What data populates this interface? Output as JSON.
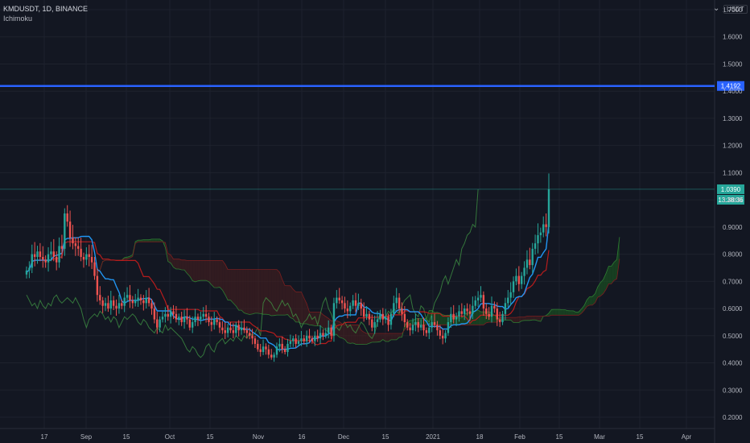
{
  "header": {
    "symbol_line": "KMDUSDT, 1D, BINANCE",
    "indicator": "Ichimoku"
  },
  "price_axis": {
    "unit_label": "USDT",
    "chevron_icon": "chevron-down-icon"
  },
  "badges": {
    "horizontal_line_price": "1.4192",
    "last_price": "1.0390",
    "countdown": "13:38:36"
  },
  "colors": {
    "background": "#131722",
    "up_candle": "#26a69a",
    "down_candle": "#ef5350",
    "conversion_line": "#2196f3",
    "base_line": "#b71c1c",
    "lagging_span": "#43a047",
    "cloud_bullish": "#1b5e20",
    "cloud_bearish": "#4a1f1f",
    "horizontal_line": "#2962ff"
  },
  "chart_data": {
    "type": "candlestick",
    "title": "KMDUSDT, 1D, BINANCE",
    "indicator": "Ichimoku",
    "ylim": [
      0.18,
      1.75
    ],
    "y_ticks": [
      "0.2000",
      "0.3000",
      "0.4000",
      "0.5000",
      "0.6000",
      "0.7000",
      "0.8000",
      "0.9000",
      "1.0000",
      "1.1000",
      "1.2000",
      "1.3000",
      "1.4000",
      "1.5000",
      "1.6000",
      "1.7000"
    ],
    "x_ticks": [
      "17",
      "Sep",
      "15",
      "Oct",
      "15",
      "Nov",
      "16",
      "Dec",
      "15",
      "2021",
      "18",
      "Feb",
      "15",
      "Mar",
      "15",
      "Apr"
    ],
    "horizontal_line": 1.4192,
    "last_price": 1.039,
    "closes": [
      0.74,
      0.75,
      0.8,
      0.79,
      0.81,
      0.79,
      0.78,
      0.77,
      0.8,
      0.81,
      0.79,
      0.77,
      0.83,
      0.82,
      0.95,
      0.92,
      0.86,
      0.84,
      0.83,
      0.82,
      0.79,
      0.78,
      0.8,
      0.79,
      0.77,
      0.72,
      0.65,
      0.63,
      0.61,
      0.62,
      0.6,
      0.63,
      0.61,
      0.6,
      0.62,
      0.61,
      0.64,
      0.65,
      0.63,
      0.62,
      0.63,
      0.64,
      0.63,
      0.62,
      0.64,
      0.62,
      0.6,
      0.56,
      0.53,
      0.56,
      0.57,
      0.58,
      0.57,
      0.59,
      0.58,
      0.56,
      0.57,
      0.55,
      0.57,
      0.56,
      0.53,
      0.55,
      0.57,
      0.56,
      0.57,
      0.58,
      0.57,
      0.55,
      0.54,
      0.56,
      0.55,
      0.53,
      0.52,
      0.51,
      0.53,
      0.52,
      0.51,
      0.54,
      0.52,
      0.53,
      0.52,
      0.51,
      0.5,
      0.49,
      0.47,
      0.45,
      0.44,
      0.46,
      0.45,
      0.43,
      0.42,
      0.43,
      0.46,
      0.47,
      0.45,
      0.44,
      0.47,
      0.48,
      0.49,
      0.47,
      0.48,
      0.49,
      0.48,
      0.5,
      0.49,
      0.48,
      0.5,
      0.49,
      0.51,
      0.5,
      0.51,
      0.53,
      0.5,
      0.62,
      0.64,
      0.63,
      0.62,
      0.6,
      0.59,
      0.61,
      0.63,
      0.61,
      0.62,
      0.6,
      0.57,
      0.58,
      0.56,
      0.53,
      0.55,
      0.56,
      0.58,
      0.56,
      0.57,
      0.54,
      0.58,
      0.62,
      0.64,
      0.6,
      0.58,
      0.55,
      0.53,
      0.52,
      0.54,
      0.55,
      0.53,
      0.54,
      0.52,
      0.51,
      0.53,
      0.55,
      0.54,
      0.52,
      0.5,
      0.49,
      0.51,
      0.55,
      0.58,
      0.56,
      0.57,
      0.59,
      0.58,
      0.6,
      0.59,
      0.58,
      0.61,
      0.63,
      0.64,
      0.65,
      0.6,
      0.58,
      0.57,
      0.61,
      0.6,
      0.56,
      0.55,
      0.58,
      0.62,
      0.64,
      0.66,
      0.7,
      0.72,
      0.69,
      0.72,
      0.75,
      0.78,
      0.76,
      0.82,
      0.84,
      0.87,
      0.88,
      0.91,
      0.9,
      1.039
    ]
  }
}
